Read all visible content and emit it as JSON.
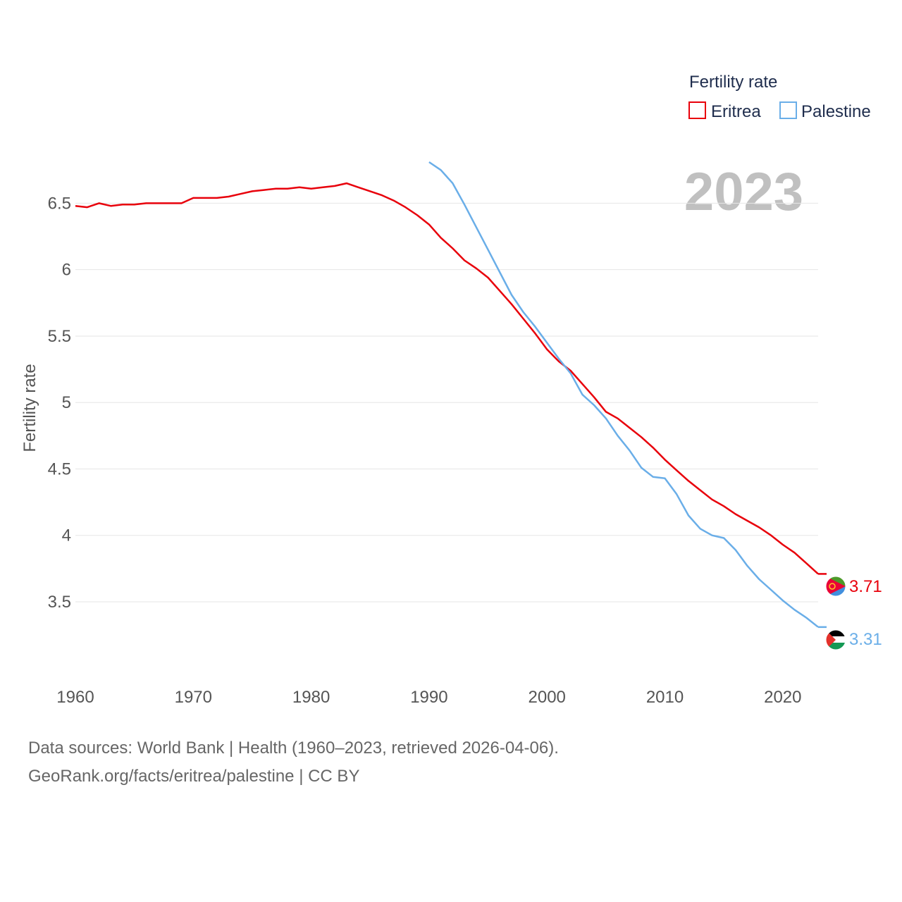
{
  "chart_data": {
    "type": "line",
    "title": "Fertility rate",
    "year_label": "2023",
    "xlabel": "",
    "ylabel": "Fertility rate",
    "xlim": [
      1960,
      2023
    ],
    "ylim": [
      3.15,
      6.9
    ],
    "xticks": [
      1960,
      1970,
      1980,
      1990,
      2000,
      2010,
      2020
    ],
    "yticks": [
      3.5,
      4,
      4.5,
      5,
      5.5,
      6,
      6.5
    ],
    "ytick_labels": [
      "3.5",
      "4",
      "4.5",
      "5",
      "5.5",
      "6",
      "6.5"
    ],
    "series": [
      {
        "name": "Eritrea",
        "color": "#e8000b",
        "end_label": "3.71",
        "x": [
          1960,
          1961,
          1962,
          1963,
          1964,
          1965,
          1966,
          1967,
          1968,
          1969,
          1970,
          1971,
          1972,
          1973,
          1974,
          1975,
          1976,
          1977,
          1978,
          1979,
          1980,
          1981,
          1982,
          1983,
          1984,
          1985,
          1986,
          1987,
          1988,
          1989,
          1990,
          1991,
          1992,
          1993,
          1994,
          1995,
          1996,
          1997,
          1998,
          1999,
          2000,
          2001,
          2002,
          2003,
          2004,
          2005,
          2006,
          2007,
          2008,
          2009,
          2010,
          2011,
          2012,
          2013,
          2014,
          2015,
          2016,
          2017,
          2018,
          2019,
          2020,
          2021,
          2022,
          2023
        ],
        "values": [
          6.48,
          6.47,
          6.5,
          6.48,
          6.49,
          6.49,
          6.5,
          6.5,
          6.5,
          6.5,
          6.54,
          6.54,
          6.54,
          6.55,
          6.57,
          6.59,
          6.6,
          6.61,
          6.61,
          6.62,
          6.61,
          6.62,
          6.63,
          6.65,
          6.62,
          6.59,
          6.56,
          6.52,
          6.47,
          6.41,
          6.34,
          6.24,
          6.16,
          6.07,
          6.01,
          5.94,
          5.84,
          5.74,
          5.63,
          5.52,
          5.4,
          5.31,
          5.24,
          5.14,
          5.04,
          4.93,
          4.88,
          4.81,
          4.74,
          4.66,
          4.57,
          4.49,
          4.41,
          4.34,
          4.27,
          4.22,
          4.16,
          4.11,
          4.06,
          4.0,
          3.93,
          3.87,
          3.79,
          3.71
        ]
      },
      {
        "name": "Palestine",
        "color": "#6aaee8",
        "end_label": "3.31",
        "x": [
          1990,
          1991,
          1992,
          1993,
          1994,
          1995,
          1996,
          1997,
          1998,
          1999,
          2000,
          2001,
          2002,
          2003,
          2004,
          2005,
          2006,
          2007,
          2008,
          2009,
          2010,
          2011,
          2012,
          2013,
          2014,
          2015,
          2016,
          2017,
          2018,
          2019,
          2020,
          2021,
          2022,
          2023
        ],
        "values": [
          6.81,
          6.75,
          6.65,
          6.49,
          6.32,
          6.15,
          5.98,
          5.81,
          5.68,
          5.57,
          5.45,
          5.33,
          5.22,
          5.06,
          4.98,
          4.88,
          4.75,
          4.64,
          4.51,
          4.44,
          4.43,
          4.31,
          4.15,
          4.05,
          4.0,
          3.98,
          3.89,
          3.77,
          3.67,
          3.59,
          3.51,
          3.44,
          3.38,
          3.31
        ]
      }
    ]
  },
  "legend": {
    "title": "Fertility rate",
    "items": [
      {
        "label": "Eritrea",
        "color": "#e8000b"
      },
      {
        "label": "Palestine",
        "color": "#6aaee8"
      }
    ]
  },
  "footer": {
    "line1": "Data sources: World Bank | Health (1960–2023, retrieved 2026-04-06).",
    "line2": "GeoRank.org/facts/eritrea/palestine | CC BY"
  }
}
